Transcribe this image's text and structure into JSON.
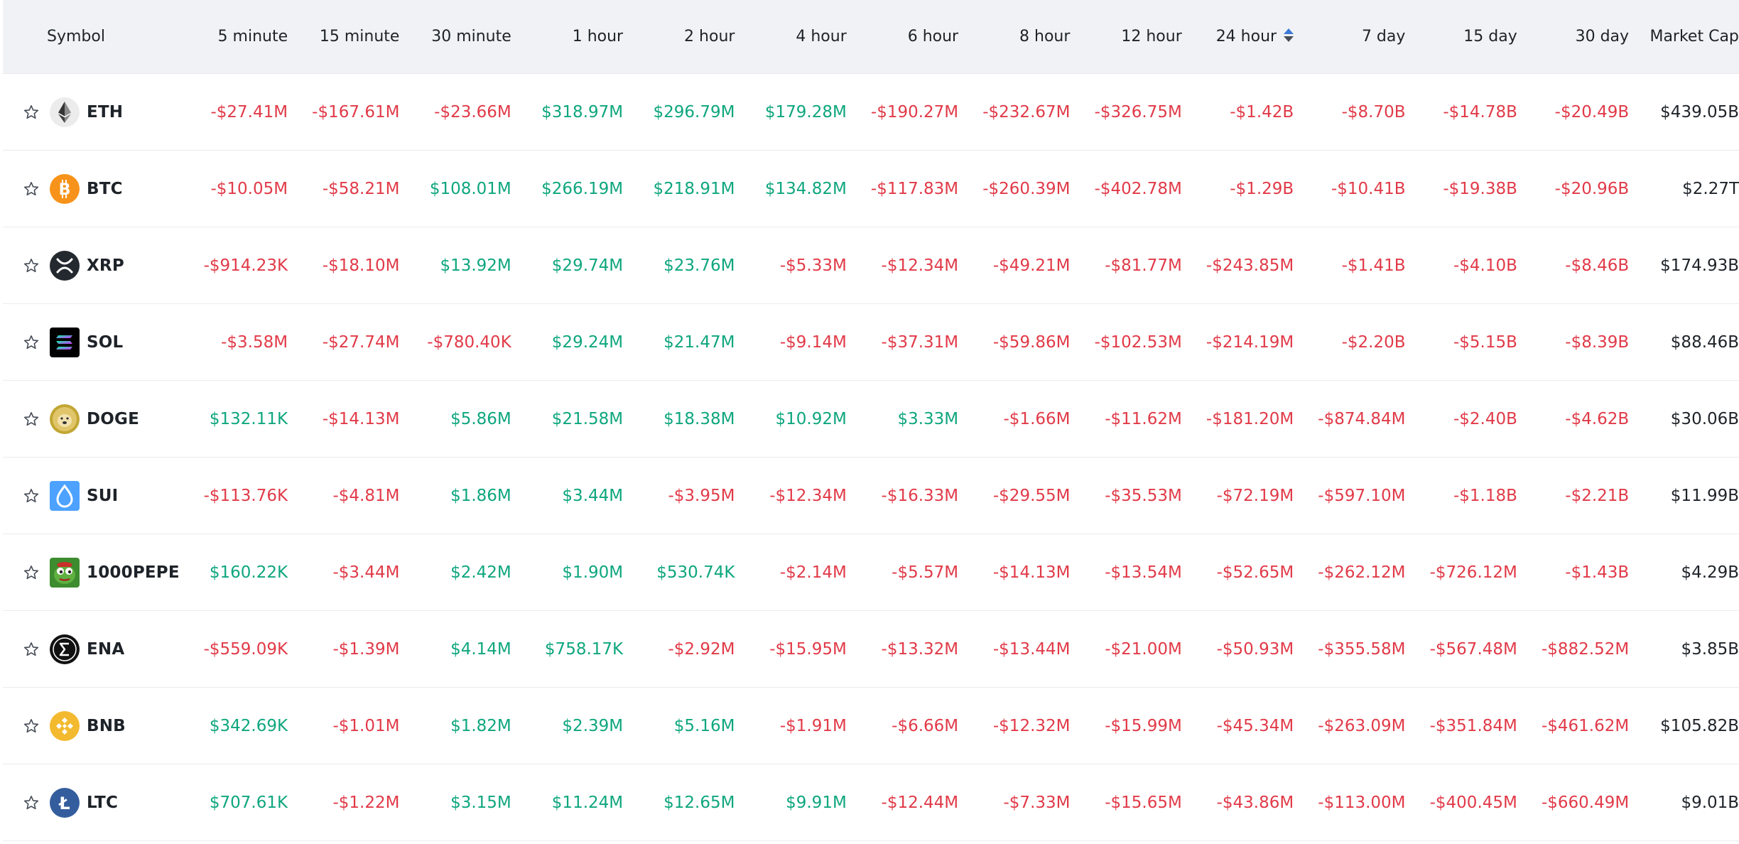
{
  "header": {
    "symbol": "Symbol",
    "columns": [
      "5 minute",
      "15 minute",
      "30 minute",
      "1 hour",
      "2 hour",
      "4 hour",
      "6 hour",
      "8 hour",
      "12 hour",
      "24 hour",
      "7 day",
      "15 day",
      "30 day"
    ],
    "market_cap": "Market Cap",
    "sorted_column": "24 hour"
  },
  "colors": {
    "positive": "#0ea67e",
    "negative": "#e13a48",
    "header_bg": "#f0f2f5",
    "sort_active": "#3c78d8"
  },
  "rows": [
    {
      "symbol": "ETH",
      "icon": "ethereum-icon",
      "values": [
        "-$27.41M",
        "-$167.61M",
        "-$23.66M",
        "$318.97M",
        "$296.79M",
        "$179.28M",
        "-$190.27M",
        "-$232.67M",
        "-$326.75M",
        "-$1.42B",
        "-$8.70B",
        "-$14.78B",
        "-$20.49B"
      ],
      "market_cap": "$439.05B"
    },
    {
      "symbol": "BTC",
      "icon": "bitcoin-icon",
      "values": [
        "-$10.05M",
        "-$58.21M",
        "$108.01M",
        "$266.19M",
        "$218.91M",
        "$134.82M",
        "-$117.83M",
        "-$260.39M",
        "-$402.78M",
        "-$1.29B",
        "-$10.41B",
        "-$19.38B",
        "-$20.96B"
      ],
      "market_cap": "$2.27T"
    },
    {
      "symbol": "XRP",
      "icon": "xrp-icon",
      "values": [
        "-$914.23K",
        "-$18.10M",
        "$13.92M",
        "$29.74M",
        "$23.76M",
        "-$5.33M",
        "-$12.34M",
        "-$49.21M",
        "-$81.77M",
        "-$243.85M",
        "-$1.41B",
        "-$4.10B",
        "-$8.46B"
      ],
      "market_cap": "$174.93B"
    },
    {
      "symbol": "SOL",
      "icon": "solana-icon",
      "values": [
        "-$3.58M",
        "-$27.74M",
        "-$780.40K",
        "$29.24M",
        "$21.47M",
        "-$9.14M",
        "-$37.31M",
        "-$59.86M",
        "-$102.53M",
        "-$214.19M",
        "-$2.20B",
        "-$5.15B",
        "-$8.39B"
      ],
      "market_cap": "$88.46B"
    },
    {
      "symbol": "DOGE",
      "icon": "dogecoin-icon",
      "values": [
        "$132.11K",
        "-$14.13M",
        "$5.86M",
        "$21.58M",
        "$18.38M",
        "$10.92M",
        "$3.33M",
        "-$1.66M",
        "-$11.62M",
        "-$181.20M",
        "-$874.84M",
        "-$2.40B",
        "-$4.62B"
      ],
      "market_cap": "$30.06B"
    },
    {
      "symbol": "SUI",
      "icon": "sui-icon",
      "values": [
        "-$113.76K",
        "-$4.81M",
        "$1.86M",
        "$3.44M",
        "-$3.95M",
        "-$12.34M",
        "-$16.33M",
        "-$29.55M",
        "-$35.53M",
        "-$72.19M",
        "-$597.10M",
        "-$1.18B",
        "-$2.21B"
      ],
      "market_cap": "$11.99B"
    },
    {
      "symbol": "1000PEPE",
      "icon": "pepe-icon",
      "values": [
        "$160.22K",
        "-$3.44M",
        "$2.42M",
        "$1.90M",
        "$530.74K",
        "-$2.14M",
        "-$5.57M",
        "-$14.13M",
        "-$13.54M",
        "-$52.65M",
        "-$262.12M",
        "-$726.12M",
        "-$1.43B"
      ],
      "market_cap": "$4.29B"
    },
    {
      "symbol": "ENA",
      "icon": "ethena-icon",
      "values": [
        "-$559.09K",
        "-$1.39M",
        "$4.14M",
        "$758.17K",
        "-$2.92M",
        "-$15.95M",
        "-$13.32M",
        "-$13.44M",
        "-$21.00M",
        "-$50.93M",
        "-$355.58M",
        "-$567.48M",
        "-$882.52M"
      ],
      "market_cap": "$3.85B"
    },
    {
      "symbol": "BNB",
      "icon": "bnb-icon",
      "values": [
        "$342.69K",
        "-$1.01M",
        "$1.82M",
        "$2.39M",
        "$5.16M",
        "-$1.91M",
        "-$6.66M",
        "-$12.32M",
        "-$15.99M",
        "-$45.34M",
        "-$263.09M",
        "-$351.84M",
        "-$461.62M"
      ],
      "market_cap": "$105.82B"
    },
    {
      "symbol": "LTC",
      "icon": "litecoin-icon",
      "values": [
        "$707.61K",
        "-$1.22M",
        "$3.15M",
        "$11.24M",
        "$12.65M",
        "$9.91M",
        "-$12.44M",
        "-$7.33M",
        "-$15.65M",
        "-$43.86M",
        "-$113.00M",
        "-$400.45M",
        "-$660.49M"
      ],
      "market_cap": "$9.01B"
    }
  ]
}
